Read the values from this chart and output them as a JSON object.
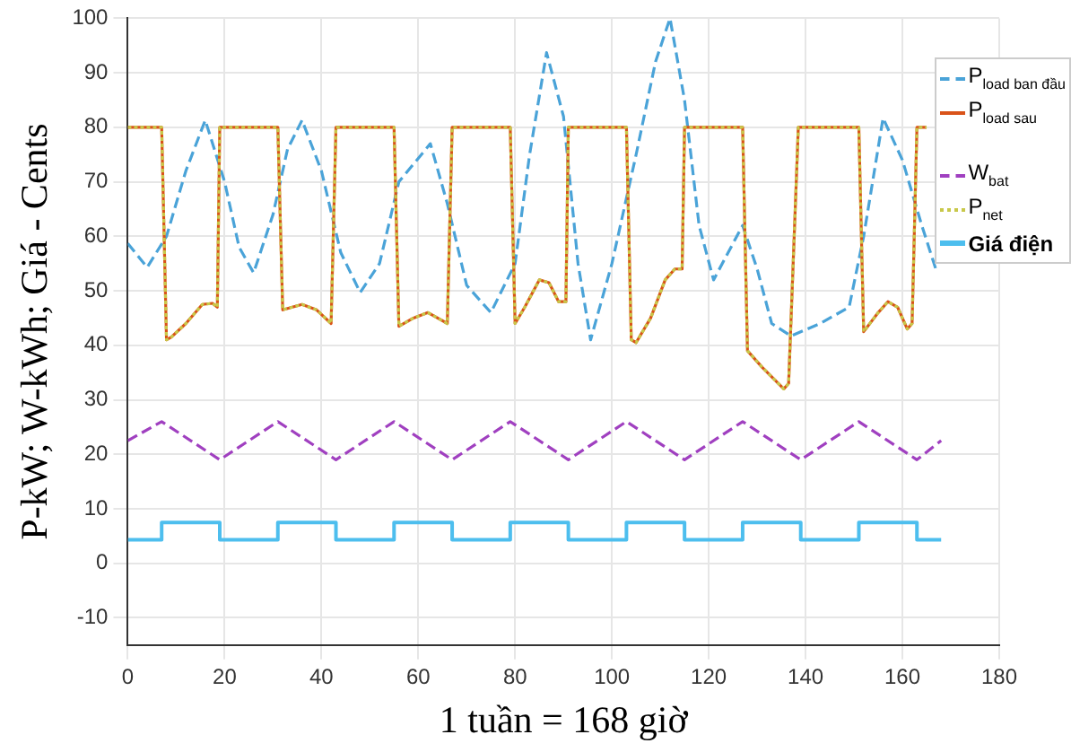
{
  "chart_data": {
    "type": "line",
    "xlabel": "1 tuần = 168 giờ",
    "ylabel": "P-kW; W-kWh; Giá - Cents",
    "xlim": [
      0,
      180
    ],
    "xticks": [
      0,
      20,
      40,
      60,
      80,
      100,
      120,
      140,
      160,
      180
    ],
    "ylim": [
      -15,
      100
    ],
    "yticks": [
      -10,
      0,
      10,
      20,
      30,
      40,
      50,
      60,
      70,
      80,
      90,
      100
    ],
    "grid": true,
    "legend": "top right",
    "marker": "none",
    "series": [
      {
        "name": "P$_{load ban đầu}$",
        "color": "#4aa3d8",
        "line_style": "dashed",
        "x": [
          0,
          4,
          8,
          12,
          16,
          20,
          23,
          26,
          30,
          33,
          36,
          40,
          44,
          48,
          52,
          56,
          62.5,
          66,
          70,
          75,
          80,
          83,
          86.5,
          90,
          93,
          95.6,
          100,
          105,
          109,
          112,
          115,
          118,
          121,
          124,
          127,
          130,
          133,
          137,
          143,
          149,
          152,
          156,
          160,
          164,
          167
        ],
        "values": [
          58.7,
          54.3,
          60,
          72,
          81.3,
          70,
          58,
          53.3,
          64,
          76,
          81.3,
          72,
          57,
          49.7,
          55,
          70,
          77,
          66,
          51,
          46,
          55,
          75,
          93.7,
          82,
          55,
          41,
          55,
          75,
          92,
          100,
          85,
          62,
          52,
          57,
          62,
          54,
          44,
          41.7,
          44,
          47,
          60,
          81.7,
          74,
          62,
          53.7
        ]
      },
      {
        "name": "P$_{load sau}$",
        "color": "#d95319",
        "line_style": "solid",
        "x": [
          0,
          7,
          8,
          9,
          12,
          15.4,
          17.5,
          18.5,
          19,
          31,
          32,
          34,
          36,
          39,
          42,
          43,
          55,
          56,
          59,
          62,
          65,
          66,
          67,
          79,
          80,
          82,
          85,
          87,
          89,
          90.5,
          91,
          103,
          104,
          105,
          108,
          111,
          113,
          114.5,
          115,
          127,
          128,
          131,
          135.5,
          136.5,
          138.5,
          151,
          152,
          155,
          157,
          159,
          161,
          162,
          163,
          165
        ],
        "values": [
          80,
          80,
          41,
          41.5,
          44,
          47.5,
          47.7,
          47,
          80,
          80,
          46.5,
          47,
          47.5,
          46.5,
          44,
          80,
          80,
          43.5,
          45,
          46,
          44.5,
          44,
          80,
          80,
          44,
          47,
          52,
          51.5,
          48,
          48,
          80,
          80,
          41,
          40.5,
          45,
          52,
          54,
          54,
          80,
          80,
          39,
          36,
          32,
          33,
          80,
          80,
          42.5,
          46,
          48,
          47,
          43,
          44,
          80,
          80
        ]
      },
      {
        "name": "W$_{bat}$",
        "color": "#a040c0",
        "line_style": "dashed",
        "x": [
          0,
          7,
          19,
          31,
          43,
          55,
          67,
          79,
          91,
          103,
          115,
          127,
          139,
          151,
          163,
          168
        ],
        "values": [
          22.5,
          26,
          19,
          26,
          19,
          26,
          19,
          26,
          19,
          26,
          19,
          26,
          19,
          26,
          19,
          22.5
        ]
      },
      {
        "name": "P$_{net}$",
        "color": "#c8c84a",
        "line_style": "dotted",
        "x": [
          0,
          7,
          8,
          9,
          12,
          15.4,
          17.5,
          18.5,
          19,
          31,
          32,
          34,
          36,
          39,
          42,
          43,
          55,
          56,
          59,
          62,
          65,
          66,
          67,
          79,
          80,
          82,
          85,
          87,
          89,
          90.5,
          91,
          103,
          104,
          105,
          108,
          111,
          113,
          114.5,
          115,
          127,
          128,
          131,
          135.5,
          136.5,
          138.5,
          151,
          152,
          155,
          157,
          159,
          161,
          162,
          163,
          165
        ],
        "values": [
          80,
          80,
          41,
          41.5,
          44,
          47.5,
          47.7,
          47,
          80,
          80,
          46.5,
          47,
          47.5,
          46.5,
          44,
          80,
          80,
          43.5,
          45,
          46,
          44.5,
          44,
          80,
          80,
          44,
          47,
          52,
          51.5,
          48,
          48,
          80,
          80,
          41,
          40.5,
          45,
          52,
          54,
          54,
          80,
          80,
          39,
          36,
          32,
          33,
          80,
          80,
          42.5,
          46,
          48,
          47,
          43,
          44,
          80,
          80
        ]
      },
      {
        "name": "Giá điện",
        "type": "step",
        "color": "#4dbeee",
        "line_style": "solid",
        "x": [
          0,
          7,
          19,
          31,
          43,
          55,
          67,
          79,
          91,
          103,
          115,
          127,
          139,
          151,
          163,
          168
        ],
        "values": [
          4.3,
          7.5,
          4.3,
          7.5,
          4.3,
          7.5,
          4.3,
          7.5,
          4.3,
          7.5,
          4.3,
          7.5,
          4.3,
          7.5,
          4.3,
          4.3
        ]
      }
    ]
  }
}
